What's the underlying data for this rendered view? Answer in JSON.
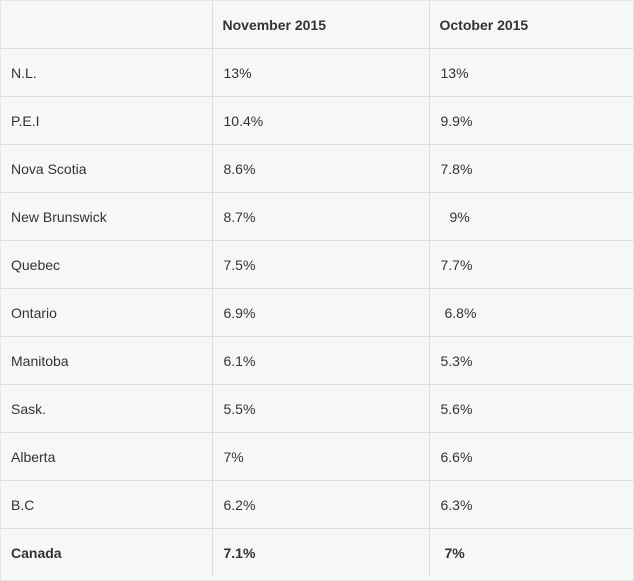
{
  "table": {
    "headers": [
      "",
      "November 2015",
      "October 2015"
    ],
    "rows": [
      {
        "region": "N.L.",
        "nov": "13%",
        "oct": "13%"
      },
      {
        "region": "P.E.I",
        "nov": "10.4%",
        "oct": "9.9%"
      },
      {
        "region": "Nova Scotia",
        "nov": "8.6%",
        "oct": "7.8%"
      },
      {
        "region": "New Brunswick",
        "nov": "8.7%",
        "oct": "9%"
      },
      {
        "region": "Quebec",
        "nov": "7.5%",
        "oct": "7.7%"
      },
      {
        "region": "Ontario",
        "nov": "6.9%",
        "oct": "6.8%"
      },
      {
        "region": "Manitoba",
        "nov": "6.1%",
        "oct": "5.3%"
      },
      {
        "region": "Sask.",
        "nov": "5.5%",
        "oct": "5.6%"
      },
      {
        "region": "Alberta",
        "nov": "7%",
        "oct": "6.6%"
      },
      {
        "region": "B.C",
        "nov": "6.2%",
        "oct": "6.3%"
      }
    ],
    "total": {
      "region": "Canada",
      "nov": "7.1%",
      "oct": "7%"
    }
  }
}
